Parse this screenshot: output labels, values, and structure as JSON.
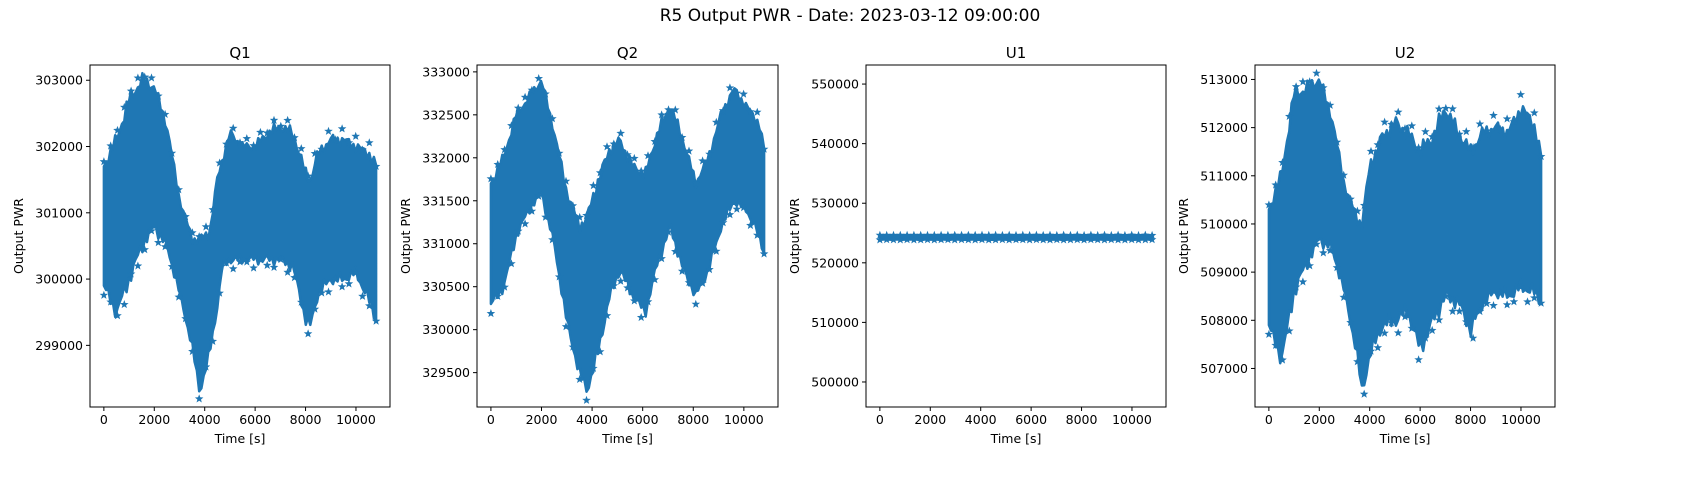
{
  "figure": {
    "title": "R5 Output PWR - Date: 2023-03-12 09:00:00"
  },
  "colors": {
    "series": "#1f77b4",
    "axes": "#000000"
  },
  "chart_data": [
    {
      "type": "scatter",
      "title": "Q1",
      "xlabel": "Time [s]",
      "ylabel": "Output PWR",
      "marker": "star",
      "xlim": [
        -550,
        11350
      ],
      "ylim": [
        298070,
        303230
      ],
      "xticks": [
        0,
        2000,
        4000,
        6000,
        8000,
        10000
      ],
      "xtick_labels": [
        "0",
        "2000",
        "4000",
        "6000",
        "8000",
        "10000"
      ],
      "yticks": [
        299000,
        300000,
        301000,
        302000,
        303000
      ],
      "ytick_labels": [
        "299000",
        "300000",
        "301000",
        "302000",
        "303000"
      ],
      "envelope": {
        "x": [
          0,
          500,
          1000,
          1500,
          2000,
          2500,
          3000,
          3500,
          3800,
          4200,
          4500,
          4700,
          5000,
          5500,
          6000,
          6500,
          7000,
          7500,
          8000,
          8200,
          8500,
          9000,
          9500,
          10000,
          10500,
          10800
        ],
        "upper": [
          301700,
          302100,
          302700,
          303000,
          302900,
          302300,
          301200,
          300600,
          300600,
          300700,
          301500,
          301800,
          302200,
          302000,
          302000,
          302200,
          302300,
          302200,
          301600,
          301500,
          301900,
          302100,
          302100,
          302000,
          301900,
          301700
        ],
        "lower": [
          299900,
          299500,
          300000,
          300500,
          300800,
          300500,
          299800,
          299000,
          298300,
          298900,
          299600,
          300200,
          300300,
          300300,
          300300,
          300300,
          300300,
          300200,
          299400,
          299300,
          299800,
          300000,
          300000,
          300100,
          299700,
          299400
        ]
      }
    },
    {
      "type": "scatter",
      "title": "Q2",
      "xlabel": "Time [s]",
      "ylabel": "Output PWR",
      "marker": "star",
      "xlim": [
        -550,
        11350
      ],
      "ylim": [
        329100,
        333080
      ],
      "xticks": [
        0,
        2000,
        4000,
        6000,
        8000,
        10000
      ],
      "xtick_labels": [
        "0",
        "2000",
        "4000",
        "6000",
        "8000",
        "10000"
      ],
      "yticks": [
        329500,
        330000,
        330500,
        331000,
        331500,
        332000,
        332500,
        333000
      ],
      "ytick_labels": [
        "329500",
        "330000",
        "330500",
        "331000",
        "331500",
        "332000",
        "332500",
        "333000"
      ],
      "envelope": {
        "x": [
          0,
          500,
          1000,
          1500,
          2000,
          2500,
          3000,
          3500,
          3800,
          4200,
          4700,
          5100,
          5600,
          6100,
          6600,
          7100,
          7600,
          8100,
          8600,
          9100,
          9600,
          10100,
          10600,
          10800
        ],
        "upper": [
          331700,
          332000,
          332500,
          332700,
          332900,
          332300,
          331600,
          331200,
          331300,
          331700,
          332100,
          332200,
          331900,
          331800,
          332300,
          332600,
          332200,
          331700,
          332000,
          332500,
          332800,
          332600,
          332400,
          332100
        ],
        "lower": [
          330300,
          330500,
          331100,
          331400,
          331600,
          331000,
          330100,
          329500,
          329300,
          329700,
          330400,
          330700,
          330400,
          330200,
          330800,
          331200,
          330700,
          330400,
          330700,
          331200,
          331500,
          331400,
          331100,
          330900
        ]
      }
    },
    {
      "type": "scatter",
      "title": "U1",
      "xlabel": "Time [s]",
      "ylabel": "Output PWR",
      "marker": "star",
      "xlim": [
        -550,
        11350
      ],
      "ylim": [
        495800,
        553200
      ],
      "xticks": [
        0,
        2000,
        4000,
        6000,
        8000,
        10000
      ],
      "xtick_labels": [
        "0",
        "2000",
        "4000",
        "6000",
        "8000",
        "10000"
      ],
      "yticks": [
        500000,
        510000,
        520000,
        530000,
        540000,
        550000
      ],
      "ytick_labels": [
        "500000",
        "510000",
        "520000",
        "530000",
        "540000",
        "550000"
      ],
      "envelope": {
        "x": [
          0,
          10800
        ],
        "upper": [
          524600,
          524600
        ],
        "lower": [
          523900,
          523900
        ]
      }
    },
    {
      "type": "scatter",
      "title": "U2",
      "xlabel": "Time [s]",
      "ylabel": "Output PWR",
      "marker": "star",
      "xlim": [
        -550,
        11350
      ],
      "ylim": [
        506200,
        513300
      ],
      "xticks": [
        0,
        2000,
        4000,
        6000,
        8000,
        10000
      ],
      "xtick_labels": [
        "0",
        "2000",
        "4000",
        "6000",
        "8000",
        "10000"
      ],
      "yticks": [
        507000,
        508000,
        509000,
        510000,
        511000,
        512000,
        513000
      ],
      "ytick_labels": [
        "507000",
        "508000",
        "509000",
        "510000",
        "511000",
        "512000",
        "513000"
      ],
      "envelope": {
        "x": [
          0,
          500,
          1000,
          1500,
          2000,
          2500,
          3000,
          3500,
          3700,
          4000,
          4500,
          5000,
          5500,
          6000,
          6500,
          7000,
          7500,
          8000,
          8500,
          9000,
          9500,
          10000,
          10500,
          10800
        ],
        "upper": [
          510300,
          511000,
          512700,
          512800,
          513000,
          512200,
          510800,
          510100,
          510000,
          511200,
          511800,
          512100,
          511900,
          511500,
          511800,
          512400,
          511900,
          511500,
          511900,
          512000,
          511900,
          512400,
          512100,
          511400
        ],
        "lower": [
          507900,
          507200,
          508600,
          509200,
          509700,
          509500,
          508600,
          507300,
          506500,
          507300,
          507900,
          508000,
          508200,
          507400,
          508000,
          508500,
          508400,
          507800,
          508400,
          508600,
          508500,
          508700,
          508600,
          508400
        ]
      }
    }
  ]
}
